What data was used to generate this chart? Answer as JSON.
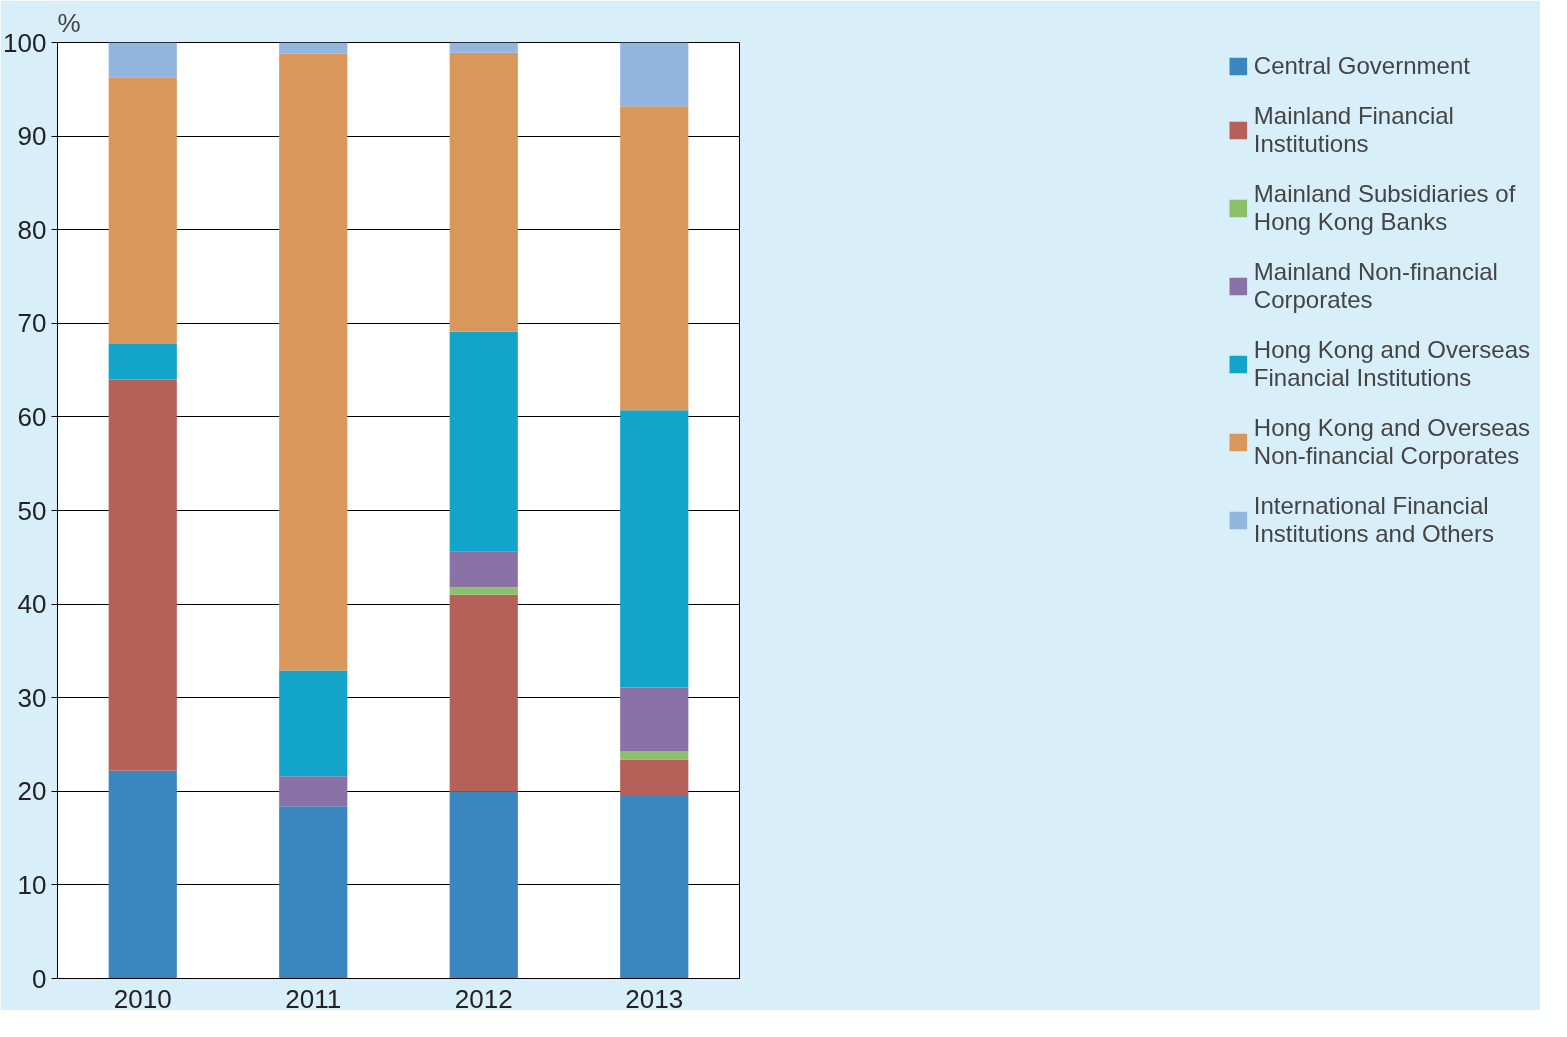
{
  "chart_data": {
    "type": "bar",
    "stacked": true,
    "ylabel": "%",
    "categories": [
      "2010",
      "2011",
      "2012",
      "2013"
    ],
    "series": [
      {
        "name": "Central Government",
        "color": "#3a87c0",
        "values": [
          22.2,
          18.4,
          20.0,
          19.6
        ]
      },
      {
        "name": "Mainland Financial Institutions",
        "color": "#b5615a",
        "values": [
          41.8,
          0,
          21.0,
          3.8
        ]
      },
      {
        "name": "Mainland Subsidiaries of Hong Kong Banks",
        "color": "#8cbf6a",
        "values": [
          0,
          0,
          0.8,
          0.9
        ]
      },
      {
        "name": "Mainland Non-financial Corporates",
        "color": "#8a72a6",
        "values": [
          0,
          3.2,
          3.8,
          6.8
        ]
      },
      {
        "name": "Hong Kong and Overseas Financial Institutions",
        "color": "#12a5c9",
        "values": [
          3.8,
          11.3,
          23.5,
          29.6
        ]
      },
      {
        "name": "Hong Kong and Overseas Non-financial Corporates",
        "color": "#d9975c",
        "values": [
          28.5,
          65.9,
          29.8,
          32.5
        ]
      },
      {
        "name": "International Financial Institutions and Others",
        "color": "#93b6e0",
        "values": [
          3.7,
          1.2,
          1.1,
          6.8
        ]
      }
    ],
    "ylim": [
      0,
      100
    ],
    "yticks": [
      0,
      10,
      20,
      30,
      40,
      50,
      60,
      70,
      80,
      90,
      100
    ],
    "grid": "y",
    "legend": "right"
  }
}
